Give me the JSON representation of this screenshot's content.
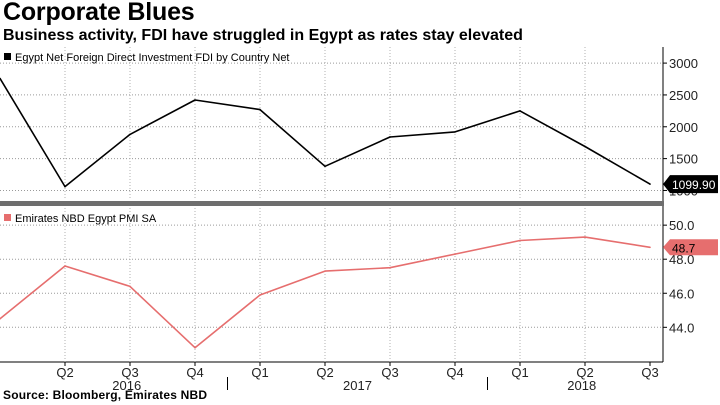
{
  "title": "Corporate Blues",
  "subtitle": "Business activity, FDI have struggled in Egypt as rates stay elevated",
  "source": "Source: Bloomberg, Emirates NBD",
  "chart_data": {
    "type": "line",
    "x_axis": {
      "quarter_labels": [
        "Q2",
        "Q3",
        "Q4",
        "Q1",
        "Q2",
        "Q3",
        "Q4",
        "Q1",
        "Q2",
        "Q3"
      ],
      "year_labels": [
        "2016",
        "2017",
        "2018"
      ]
    },
    "panels": [
      {
        "legend": "Egypt Net Foreign Direct Investment FDI by Country Net",
        "series": [
          {
            "name": "Egypt Net Foreign Direct Investment FDI by Country Net",
            "color": "#000000",
            "x": [
              "Q1 2016",
              "Q2 2016",
              "Q3 2016",
              "Q4 2016",
              "Q1 2017",
              "Q2 2017",
              "Q3 2017",
              "Q4 2017",
              "Q1 2018",
              "Q2 2018",
              "Q3 2018"
            ],
            "values": [
              2760,
              1060,
              1880,
              2420,
              2270,
              1380,
              1840,
              1920,
              2250,
              1690,
              1099.9
            ]
          }
        ],
        "y_ticks": [
          1000,
          1500,
          2000,
          2500,
          3000
        ],
        "y_tick_labels": [
          "1000",
          "1500",
          "2000",
          "2500",
          "3000"
        ],
        "ylim": [
          960,
          3080
        ],
        "last_value_label": "1099.90",
        "last_value_style": "dark"
      },
      {
        "legend": "Emirates NBD Egypt PMI SA",
        "series": [
          {
            "name": "Emirates NBD Egypt PMI SA",
            "color": "#e66e6e",
            "x": [
              "Q1 2016",
              "Q2 2016",
              "Q3 2016",
              "Q4 2016",
              "Q1 2017",
              "Q2 2017",
              "Q3 2017",
              "Q4 2017",
              "Q1 2018",
              "Q2 2018",
              "Q3 2018"
            ],
            "values": [
              44.5,
              47.6,
              46.4,
              42.8,
              45.9,
              47.3,
              47.5,
              48.3,
              49.1,
              49.3,
              48.7
            ]
          }
        ],
        "y_ticks": [
          44.0,
          46.0,
          48.0,
          50.0
        ],
        "y_tick_labels": [
          "44.0",
          "46.0",
          "48.0",
          "50.0"
        ],
        "ylim": [
          42.55,
          50.42
        ],
        "last_value_label": "48.7",
        "last_value_style": "red"
      }
    ],
    "grid": true,
    "legend_position": "top-left"
  }
}
